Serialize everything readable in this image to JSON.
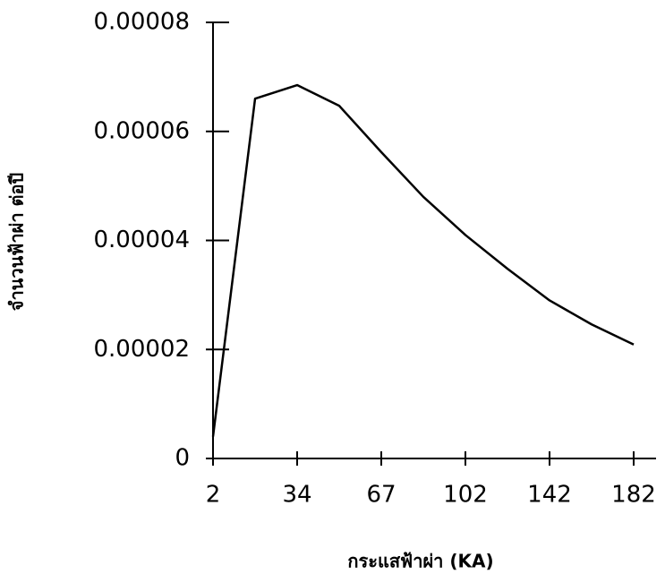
{
  "chart_data": {
    "type": "line",
    "xlabel": "กระแสฟ้าผ่า (KA)",
    "ylabel": "จำนวนฟ้าผ่า ต่อปี",
    "categories": [
      "2",
      null,
      "34",
      null,
      "67",
      null,
      "102",
      null,
      "142",
      null,
      "182"
    ],
    "series": [
      {
        "color": "#000000",
        "values": [
          4e-06,
          6.6e-05,
          6.85e-05,
          6.47e-05,
          5.62e-05,
          4.8e-05,
          4.1e-05,
          3.48e-05,
          2.9e-05,
          2.46e-05,
          2.09e-05
        ]
      }
    ],
    "ylim": [
      0,
      8e-05
    ],
    "yticks": [
      0,
      {
        "value": 2e-05,
        "label": "0.00002"
      },
      {
        "value": 4e-05,
        "label": "0.00004"
      },
      {
        "value": 6e-05,
        "label": "0.00006"
      },
      {
        "value": 8e-05,
        "label": "0.00008"
      }
    ]
  }
}
